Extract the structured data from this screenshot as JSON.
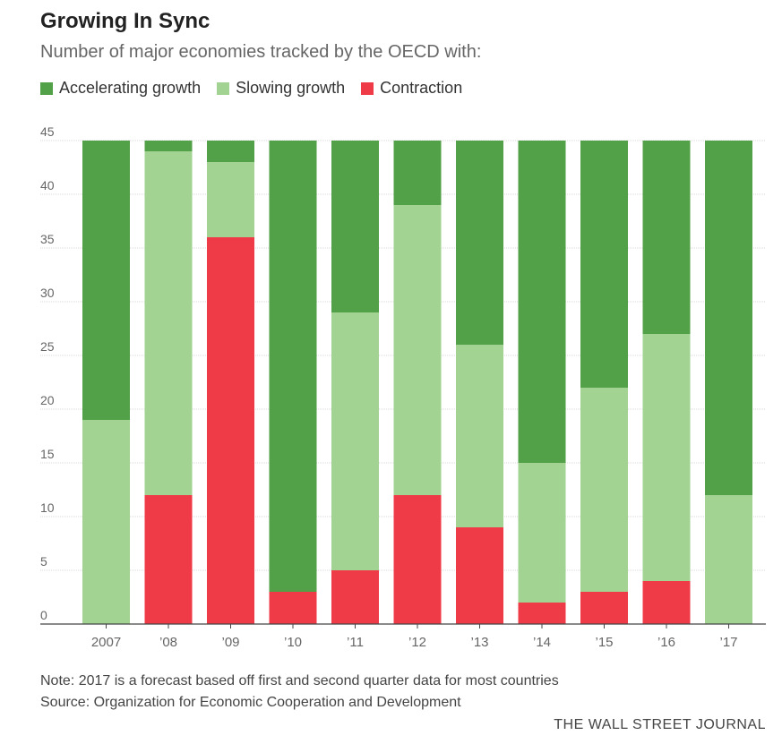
{
  "header": {
    "title": "Growing In Sync",
    "subtitle": "Number of major economies tracked by the OECD with:"
  },
  "footer": {
    "note": "Note: 2017 is a forecast based off first and second quarter data for most countries",
    "source": "Source: Organization for Economic Cooperation and Development",
    "credit": "THE WALL STREET JOURNAL"
  },
  "colors": {
    "accelerating": "#52a047",
    "slowing": "#a2d393",
    "contraction": "#ef3b47"
  },
  "chart_data": {
    "type": "bar",
    "stacked": true,
    "title": "Growing In Sync",
    "subtitle": "Number of major economies tracked by the OECD with:",
    "categories": [
      "2007",
      "’08",
      "’09",
      "’10",
      "’11",
      "’12",
      "’13",
      "’14",
      "’15",
      "’16",
      "’17"
    ],
    "series": [
      {
        "name": "Contraction",
        "key": "contraction",
        "values": [
          0,
          12,
          36,
          3,
          5,
          12,
          9,
          2,
          3,
          4,
          0
        ]
      },
      {
        "name": "Slowing growth",
        "key": "slowing",
        "values": [
          19,
          32,
          7,
          0,
          24,
          27,
          17,
          13,
          19,
          23,
          12
        ]
      },
      {
        "name": "Accelerating growth",
        "key": "accelerating",
        "values": [
          26,
          1,
          2,
          42,
          16,
          6,
          19,
          30,
          23,
          18,
          33
        ]
      }
    ],
    "legend_order": [
      "Accelerating growth",
      "Slowing growth",
      "Contraction"
    ],
    "yticks": [
      0,
      5,
      10,
      15,
      20,
      25,
      30,
      35,
      40,
      45
    ],
    "ylim": [
      0,
      45
    ],
    "grid": true,
    "legend_position": "top-left"
  }
}
